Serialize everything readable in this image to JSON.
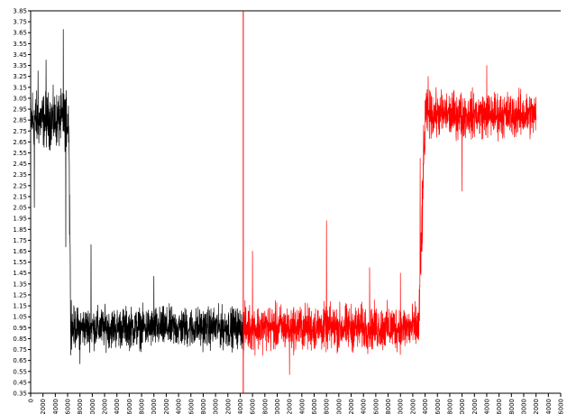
{
  "chart_data": {
    "type": "line",
    "title": "",
    "xlabel": "",
    "ylabel": "",
    "xlim": [
      0,
      86000
    ],
    "ylim": [
      0.35,
      3.85
    ],
    "y_ticks": [
      "0.35",
      "0.45",
      "0.55",
      "0.65",
      "0.75",
      "0.85",
      "0.95",
      "1.05",
      "1.15",
      "1.25",
      "1.35",
      "1.45",
      "1.55",
      "1.65",
      "1.75",
      "1.85",
      "1.95",
      "2.05",
      "2.15",
      "2.25",
      "2.35",
      "2.45",
      "2.55",
      "2.65",
      "2.75",
      "2.85",
      "2.95",
      "3.05",
      "3.15",
      "3.25",
      "3.35",
      "3.45",
      "3.55",
      "3.65",
      "3.75",
      "3.85"
    ],
    "x_ticks": [
      "0",
      "2000",
      "4000",
      "6000",
      "8000",
      "0000",
      "2000",
      "4000",
      "6000",
      "8000",
      "0000",
      "2000",
      "4000",
      "6000",
      "8000",
      "0000",
      "2000",
      "4000",
      "6000",
      "8000",
      "0000",
      "2000",
      "4000",
      "6000",
      "8000",
      "0000",
      "2000",
      "4000",
      "6000",
      "8000",
      "0000",
      "2000",
      "4000",
      "6000",
      "8000",
      "0000",
      "2000",
      "4000",
      "6000",
      "8000",
      "0000",
      "2000",
      "4000",
      "6000"
    ],
    "x_tick_step": 2000,
    "legend": "none",
    "grid": false,
    "vertical_marker": {
      "x": 34500,
      "color": "#ff0000"
    },
    "series": [
      {
        "color": "#000000",
        "x_range": [
          0,
          34500
        ],
        "segments": [
          {
            "x": [
              0,
              6200
            ],
            "mean": 2.85,
            "amp": 0.3
          },
          {
            "x": [
              6200,
              6500
            ],
            "mean_from": 2.85,
            "mean_to": 1.0,
            "amp": 0.25
          },
          {
            "x": [
              6500,
              34500
            ],
            "mean": 0.95,
            "amp": 0.22
          }
        ],
        "points": [
          [
            0,
            2.0
          ],
          [
            300,
            3.1
          ],
          [
            600,
            2.05
          ],
          [
            1200,
            3.3
          ],
          [
            2500,
            3.4
          ],
          [
            5300,
            3.68
          ],
          [
            5700,
            1.69
          ],
          [
            9800,
            1.71
          ],
          [
            6300,
            1.8
          ],
          [
            6600,
            1.2
          ],
          [
            8000,
            0.62
          ],
          [
            20000,
            1.42
          ],
          [
            34500,
            0.7
          ]
        ]
      },
      {
        "color": "#ff0000",
        "x_range": [
          34500,
          82000
        ],
        "segments": [
          {
            "x": [
              34500,
              63000
            ],
            "mean": 0.95,
            "amp": 0.25
          },
          {
            "x": [
              63000,
              64000
            ],
            "mean_from": 1.0,
            "mean_to": 2.85,
            "amp": 0.4
          },
          {
            "x": [
              64000,
              82000
            ],
            "mean": 2.9,
            "amp": 0.25
          }
        ],
        "points": [
          [
            36000,
            1.65
          ],
          [
            42000,
            0.52
          ],
          [
            48000,
            1.93
          ],
          [
            55000,
            1.5
          ],
          [
            60000,
            1.45
          ],
          [
            63200,
            2.5
          ],
          [
            64500,
            3.25
          ],
          [
            70000,
            2.2
          ],
          [
            74000,
            3.35
          ],
          [
            82000,
            2.85
          ]
        ]
      }
    ]
  }
}
